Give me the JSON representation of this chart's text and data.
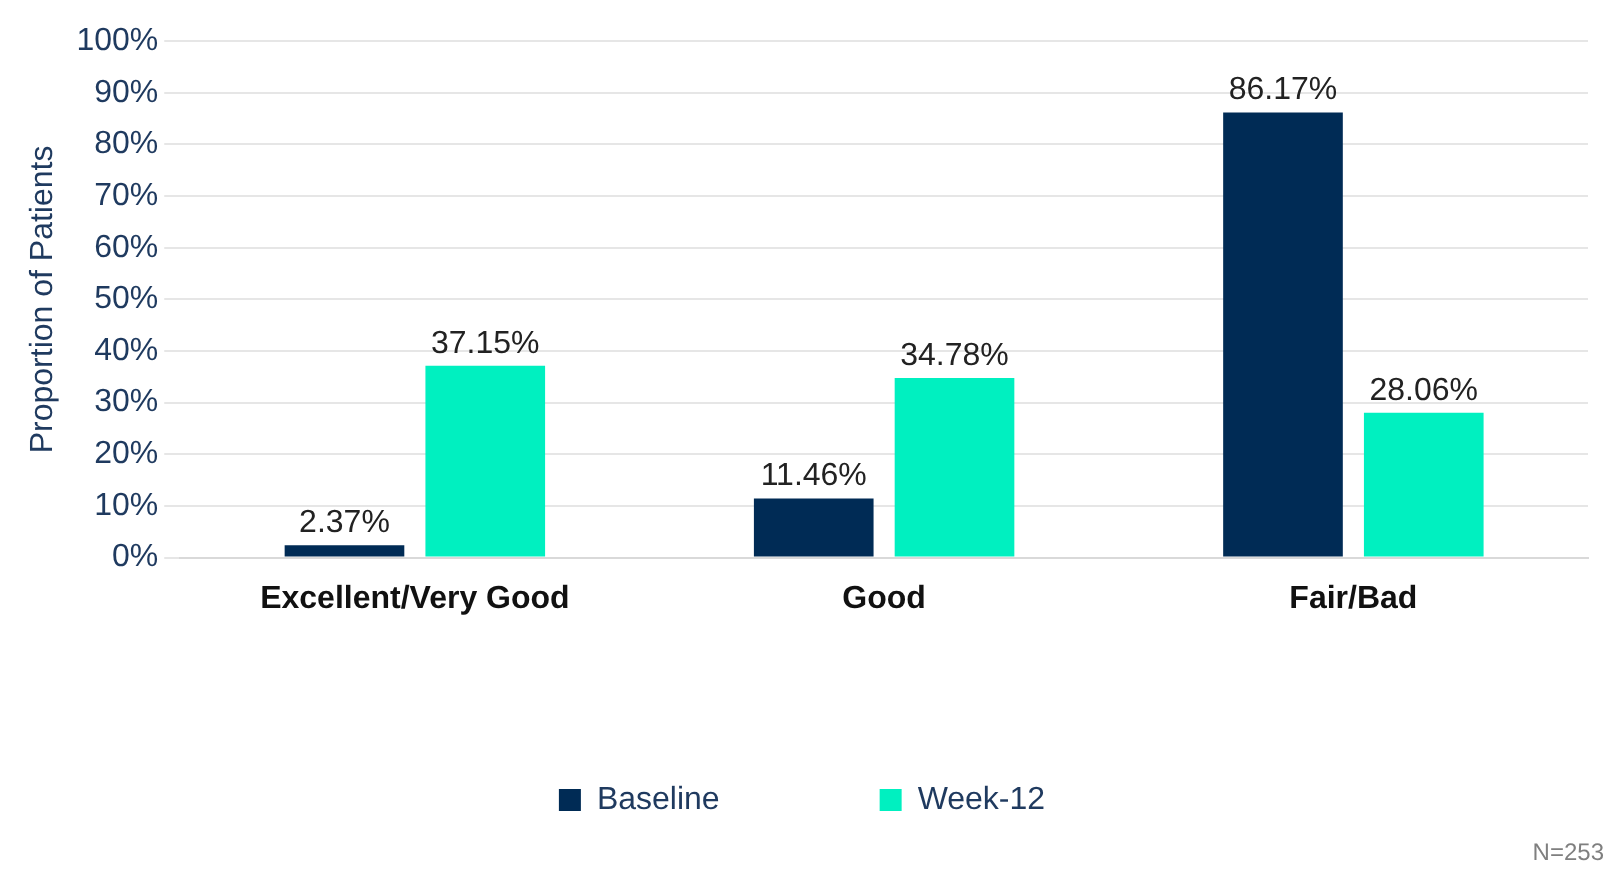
{
  "chart_data": {
    "type": "bar",
    "ylabel": "Proportion of Patients",
    "categories": [
      "Excellent/Very Good",
      "Good",
      "Fair/Bad"
    ],
    "series": [
      {
        "name": "Baseline",
        "color": "#002b55",
        "values": [
          2.37,
          11.46,
          86.17
        ],
        "value_labels": [
          "2.37%",
          "11.46%",
          "86.17%"
        ]
      },
      {
        "name": "Week-12",
        "color": "#00f0c0",
        "values": [
          37.15,
          34.78,
          28.06
        ],
        "value_labels": [
          "37.15%",
          "34.78%",
          "28.06%"
        ]
      }
    ],
    "ylim": [
      0,
      100
    ],
    "yticks": [
      {
        "value": 0,
        "label": "0%"
      },
      {
        "value": 10,
        "label": "10%"
      },
      {
        "value": 20,
        "label": "20%"
      },
      {
        "value": 30,
        "label": "30%"
      },
      {
        "value": 40,
        "label": "40%"
      },
      {
        "value": 50,
        "label": "50%"
      },
      {
        "value": 60,
        "label": "60%"
      },
      {
        "value": 70,
        "label": "70%"
      },
      {
        "value": 80,
        "label": "80%"
      },
      {
        "value": 90,
        "label": "90%"
      },
      {
        "value": 100,
        "label": "100%"
      }
    ],
    "grid": "y",
    "legend": "bottom",
    "annotations": [
      "N=253"
    ]
  }
}
